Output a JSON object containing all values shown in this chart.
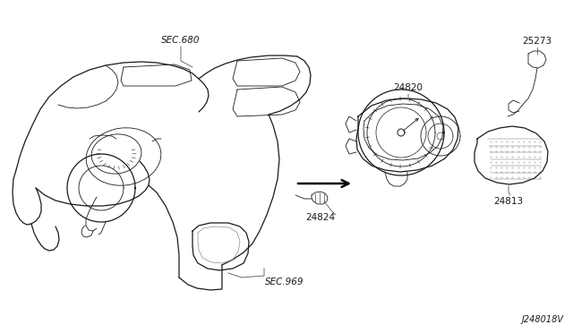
{
  "bg_color": "#ffffff",
  "line_color": "#1a1a1a",
  "text_color": "#1a1a1a",
  "diagram_id": "J248018V",
  "figsize": [
    6.4,
    3.72
  ],
  "dpi": 100,
  "labels": {
    "SEC680": "SEC.680",
    "n24820": "24820",
    "n24824": "24824",
    "SEC969": "SEC.969",
    "n24813": "24813",
    "n25273": "25273"
  }
}
